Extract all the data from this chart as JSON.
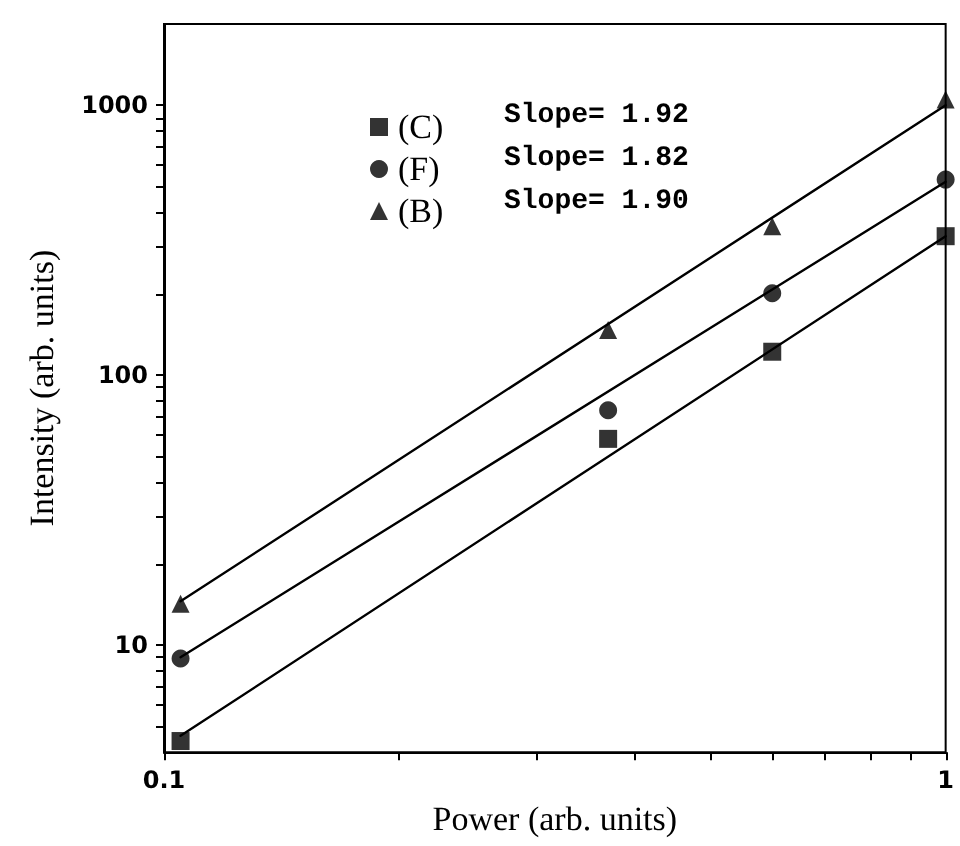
{
  "chart_data": {
    "type": "scatter",
    "xlabel": "Power (arb. units)",
    "ylabel": "Intensity (arb. units)",
    "log": "xy",
    "xlim": [
      0.1,
      1
    ],
    "ylim": [
      4,
      2000
    ],
    "xticks": [
      0.1,
      {
        "value": 0.2,
        "label": null
      },
      {
        "value": 0.3,
        "label": null
      },
      {
        "value": 0.4,
        "label": null
      },
      {
        "value": 0.5,
        "label": null
      },
      {
        "value": 0.6,
        "label": null
      },
      {
        "value": 0.7,
        "label": null
      },
      {
        "value": 0.8,
        "label": null
      },
      {
        "value": 0.9,
        "label": null
      },
      1
    ],
    "yticks": [
      {
        "value": 5,
        "label": null
      },
      {
        "value": 6,
        "label": null
      },
      {
        "value": 7,
        "label": null
      },
      {
        "value": 8,
        "label": null
      },
      {
        "value": 9,
        "label": null
      },
      10,
      {
        "value": 20,
        "label": null
      },
      {
        "value": 30,
        "label": null
      },
      {
        "value": 40,
        "label": null
      },
      {
        "value": 50,
        "label": null
      },
      {
        "value": 60,
        "label": null
      },
      {
        "value": 70,
        "label": null
      },
      {
        "value": 80,
        "label": null
      },
      {
        "value": 90,
        "label": null
      },
      100,
      {
        "value": 200,
        "label": null
      },
      {
        "value": 300,
        "label": null
      },
      {
        "value": 400,
        "label": null
      },
      {
        "value": 500,
        "label": null
      },
      {
        "value": 600,
        "label": null
      },
      {
        "value": 700,
        "label": null
      },
      {
        "value": 800,
        "label": null
      },
      {
        "value": 900,
        "label": null
      },
      1000
    ],
    "grid": false,
    "legend": "top left",
    "series": [
      {
        "name": "(C)",
        "marker": "square",
        "color": "#000000",
        "x": [
          0.105,
          0.37,
          0.6,
          1
        ],
        "values": [
          4.4,
          58,
          122,
          327
        ]
      },
      {
        "name": "(F)",
        "marker": "circle",
        "color": "#000000",
        "x": [
          0.105,
          0.37,
          0.6,
          1
        ],
        "values": [
          8.9,
          74,
          201,
          530
        ]
      },
      {
        "name": "(B)",
        "marker": "triangle",
        "color": "#000000",
        "x": [
          0.105,
          0.37,
          0.6,
          1
        ],
        "values": [
          14.2,
          147,
          356,
          1050
        ]
      },
      {
        "type": "line",
        "marker": "none",
        "line_style": "solid",
        "color": "#000000",
        "x": [
          0.105,
          1
        ],
        "values": [
          4.6,
          327
        ]
      },
      {
        "type": "line",
        "marker": "none",
        "line_style": "solid",
        "color": "#000000",
        "x": [
          0.105,
          1
        ],
        "values": [
          9,
          520
        ]
      },
      {
        "type": "line",
        "marker": "none",
        "line_style": "solid",
        "color": "#000000",
        "x": [
          0.105,
          1
        ],
        "values": [
          14.5,
          1000
        ]
      }
    ],
    "annotations": [
      "Slope= 1.92",
      "Slope= 1.82",
      "Slope= 1.90"
    ]
  }
}
